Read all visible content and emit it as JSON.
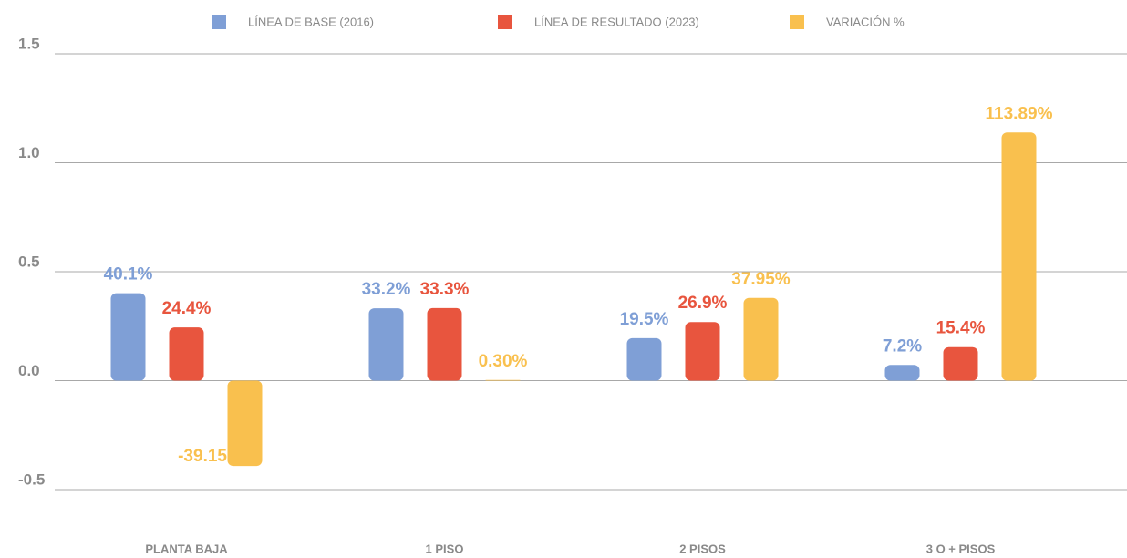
{
  "chart_data": {
    "type": "bar",
    "categories": [
      "PLANTA BAJA",
      "1 PISO",
      "2 PISOS",
      "3 O + PISOS"
    ],
    "series": [
      {
        "name": "LÍNEA DE BASE (2016)",
        "color": "#7f9fd6",
        "values": [
          0.401,
          0.332,
          0.195,
          0.072
        ],
        "value_labels": [
          "40.1%",
          "33.2%",
          "19.5%",
          "7.2%"
        ]
      },
      {
        "name": "LÍNEA DE RESULTADO (2023)",
        "color": "#e8553e",
        "values": [
          0.244,
          0.333,
          0.269,
          0.154
        ],
        "value_labels": [
          "24.4%",
          "33.3%",
          "26.9%",
          "15.4%"
        ]
      },
      {
        "name": "VARIACIÓN %",
        "color": "#f9c04e",
        "values": [
          -0.3915,
          0.003,
          0.3795,
          1.1389
        ],
        "value_labels": [
          "-39.15%",
          "0.30%",
          "37.95%",
          "113.89%"
        ]
      }
    ],
    "ylim": [
      -0.5,
      1.5
    ],
    "yticks": [
      1.5,
      {
        "value": 1.0,
        "label": "1.0"
      },
      0.5,
      {
        "value": 0.0,
        "label": "0.0"
      },
      -0.5
    ],
    "grid": true,
    "legend": "top"
  }
}
